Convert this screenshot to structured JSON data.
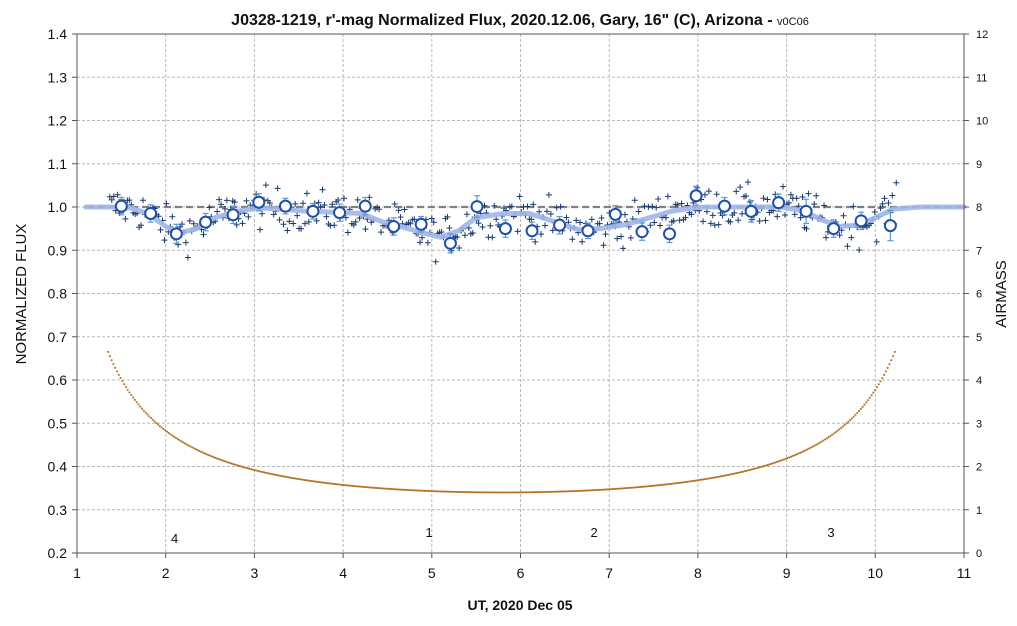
{
  "chart_data": {
    "type": "scatter",
    "title": "J0328-1219, r'-mag Normalized Flux, 2020.12.06, Gary, 16\" (C), Arizona - ",
    "title_version": "v0C06",
    "xlabel": "UT, 2020 Dec 05",
    "ylabel": "NORMALIZED FLUX",
    "y2label": "AIRMASS",
    "xlim": [
      1,
      11
    ],
    "ylim": [
      0.2,
      1.4
    ],
    "y2lim": [
      0,
      12
    ],
    "x_ticks": [
      "1",
      "2",
      "3",
      "4",
      "5",
      "6",
      "7",
      "8",
      "9",
      "10",
      "11"
    ],
    "y_ticks": [
      "0.2",
      "0.3",
      "0.4",
      "0.5",
      "0.6",
      "0.7",
      "0.8",
      "0.9",
      "1.0",
      "1.1",
      "1.2",
      "1.3",
      "1.4"
    ],
    "y2_ticks": [
      "0",
      "1",
      "2",
      "3",
      "4",
      "5",
      "6",
      "7",
      "8",
      "9",
      "10",
      "11",
      "12"
    ],
    "grid": true,
    "colors": {
      "raw_points": "#1a3a6e",
      "binned_fill": "#ffffff",
      "binned_stroke": "#1f4fa8",
      "error_bars": "#5b9bd5",
      "model_line": "#9fb6e8",
      "reference_line": "#808080",
      "airmass": "#b07020"
    },
    "reference_level": 1.0,
    "series": [
      {
        "kind": "binned",
        "x": [
          1.5,
          1.83,
          2.12,
          2.45,
          2.76,
          3.05,
          3.35,
          3.66,
          3.96,
          4.25,
          4.57,
          4.88,
          5.21,
          5.51,
          5.83,
          6.13,
          6.44,
          6.76,
          7.07,
          7.37,
          7.68,
          7.98,
          8.3,
          8.6,
          8.91,
          9.22,
          9.53,
          9.84,
          10.17
        ],
        "y": [
          1.002,
          0.985,
          0.938,
          0.965,
          0.982,
          1.011,
          1.002,
          0.99,
          0.987,
          1.002,
          0.955,
          0.96,
          0.916,
          1.001,
          0.95,
          0.945,
          0.958,
          0.945,
          0.983,
          0.943,
          0.938,
          1.026,
          1.002,
          0.99,
          1.01,
          0.99,
          0.95,
          0.968,
          0.957
        ],
        "err": [
          0.02,
          0.02,
          0.022,
          0.02,
          0.02,
          0.02,
          0.018,
          0.018,
          0.02,
          0.02,
          0.02,
          0.018,
          0.022,
          0.025,
          0.02,
          0.02,
          0.02,
          0.018,
          0.02,
          0.02,
          0.02,
          0.022,
          0.02,
          0.025,
          0.02,
          0.028,
          0.02,
          0.02,
          0.035
        ]
      },
      {
        "kind": "model",
        "x": [
          1.1,
          1.4,
          1.6,
          1.8,
          2.0,
          2.15,
          2.35,
          2.55,
          2.8,
          3.05,
          3.3,
          3.6,
          3.9,
          4.2,
          4.45,
          4.65,
          4.9,
          5.1,
          5.3,
          5.5,
          5.8,
          6.1,
          6.4,
          6.65,
          6.9,
          7.2,
          7.45,
          7.7,
          7.9,
          8.1,
          8.4,
          8.7,
          8.95,
          9.2,
          9.4,
          9.6,
          9.8,
          10.0,
          10.2,
          10.5,
          11.0
        ],
        "y": [
          1.0,
          1.0,
          0.998,
          0.985,
          0.955,
          0.94,
          0.95,
          0.975,
          0.99,
          0.998,
          0.995,
          0.99,
          0.988,
          0.985,
          0.965,
          0.955,
          0.94,
          0.93,
          0.945,
          0.975,
          0.985,
          0.985,
          0.965,
          0.948,
          0.95,
          0.96,
          0.975,
          0.99,
          0.997,
          1.0,
          1.0,
          1.0,
          1.0,
          0.99,
          0.97,
          0.955,
          0.958,
          0.975,
          0.995,
          1.0,
          1.0
        ]
      },
      {
        "kind": "airmass",
        "x_start": 1.35,
        "x_end": 10.22,
        "min_airmass": 1.4,
        "min_x": 5.8,
        "max_airmass": 4.65
      }
    ],
    "annotations": [
      {
        "text": "4",
        "x": 2.1,
        "y": 0.235
      },
      {
        "text": "1",
        "x": 4.97,
        "y": 0.248
      },
      {
        "text": "2",
        "x": 6.83,
        "y": 0.248
      },
      {
        "text": "3",
        "x": 9.5,
        "y": 0.248
      }
    ]
  }
}
